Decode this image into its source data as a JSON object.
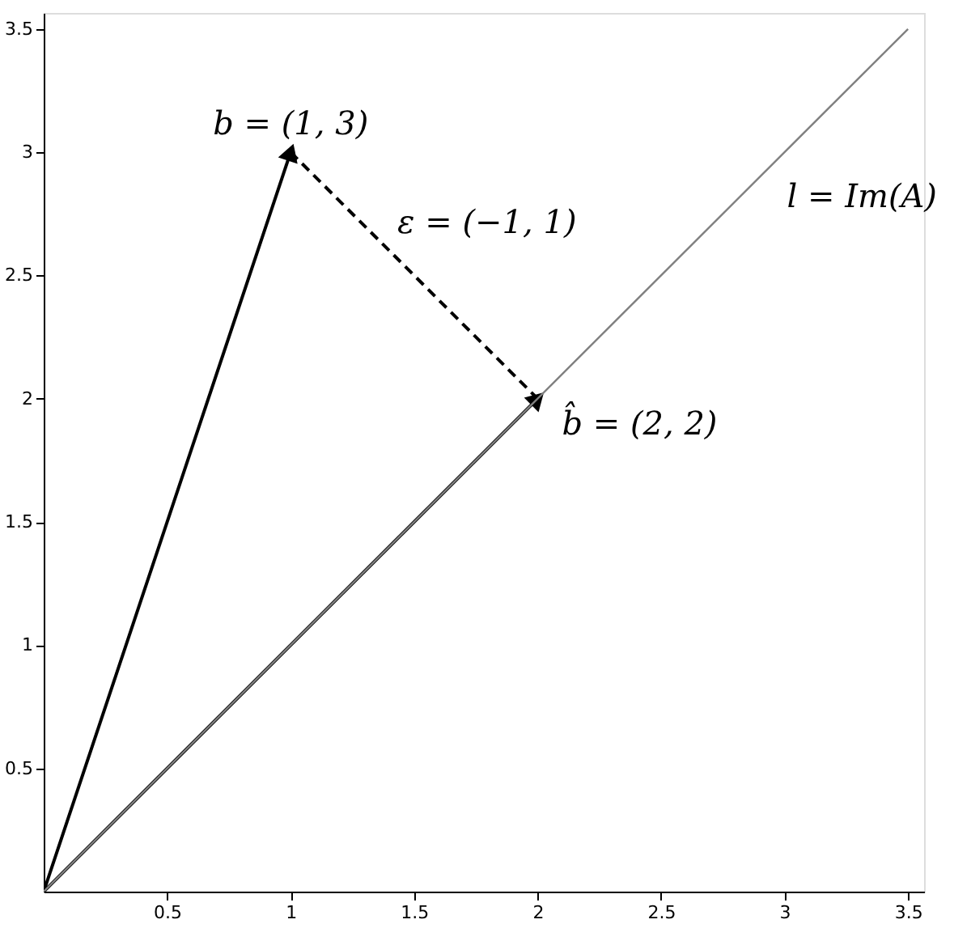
{
  "chart_data": {
    "type": "line",
    "xlim": [
      0,
      3.565
    ],
    "ylim": [
      0,
      3.565
    ],
    "xticks": [
      0.5,
      1,
      1.5,
      2,
      2.5,
      3,
      3.5
    ],
    "yticks": [
      0.5,
      1,
      1.5,
      2,
      2.5,
      3,
      3.5
    ],
    "grid": false,
    "series": [
      {
        "color": "#808080",
        "x": [
          0,
          3.5
        ],
        "values": [
          0,
          3.5
        ],
        "line_style": "solid",
        "marker": "none"
      },
      {
        "color": "#000000",
        "x": [
          0,
          1
        ],
        "values": [
          0,
          3
        ],
        "line_style": "solid",
        "marker": "triangle"
      },
      {
        "color": "#000000",
        "x": [
          0,
          2
        ],
        "values": [
          0,
          2
        ],
        "line_style": "solid",
        "marker": "triangle"
      },
      {
        "color": "#000000",
        "x": [
          1,
          2
        ],
        "values": [
          3,
          2
        ],
        "line_style": "dashed",
        "marker": "none"
      }
    ],
    "annotations": [
      {
        "text": "b = (1, 3)",
        "x": 1,
        "y": 3
      },
      {
        "text": "ε = (−1, 1)",
        "x": 1.5,
        "y": 2.5
      },
      {
        "text": "b̂ = (2, 2)",
        "x": 2,
        "y": 2
      },
      "l = Im(A)"
    ]
  }
}
